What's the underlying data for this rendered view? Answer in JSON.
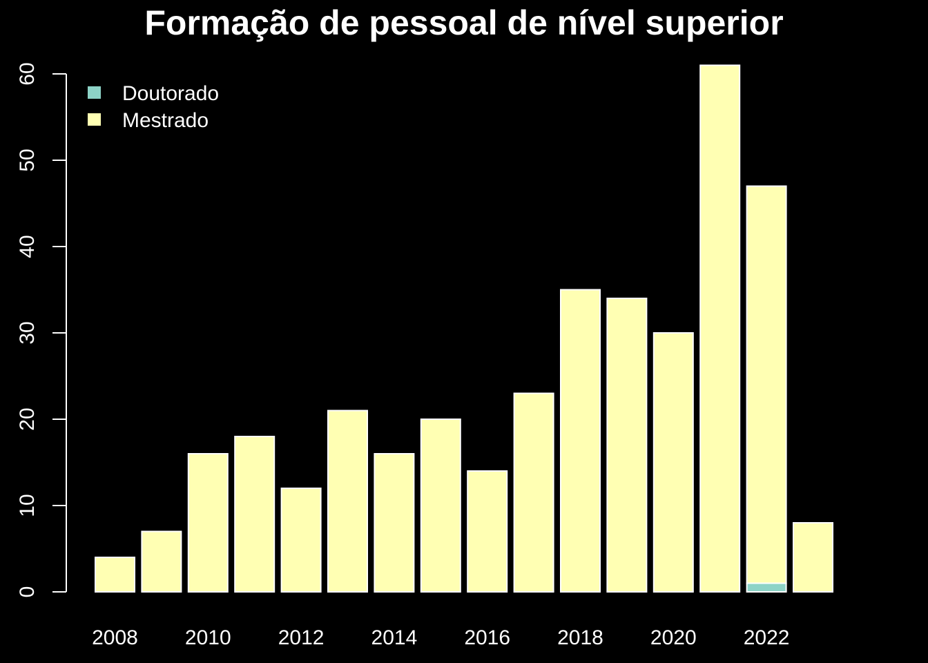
{
  "chart_data": {
    "type": "bar",
    "stacked": true,
    "title": "Formação de pessoal de nível superior",
    "xlabel": "",
    "ylabel": "",
    "categories": [
      "2008",
      "2009",
      "2010",
      "2011",
      "2012",
      "2013",
      "2014",
      "2015",
      "2016",
      "2017",
      "2018",
      "2019",
      "2020",
      "2021",
      "2022",
      "2023"
    ],
    "x_tick_labels": [
      "2008",
      "2010",
      "2012",
      "2014",
      "2016",
      "2018",
      "2020",
      "2022"
    ],
    "y_ticks": [
      0,
      10,
      20,
      30,
      40,
      50,
      60
    ],
    "ylim": [
      0,
      61
    ],
    "grid": false,
    "legend_position": "top-left",
    "background": "#000000",
    "series": [
      {
        "name": "Doutorado",
        "color": "#8dd3c7",
        "values": [
          0,
          0,
          0,
          0,
          0,
          0,
          0,
          0,
          0,
          0,
          0,
          0,
          0,
          0,
          1,
          0
        ]
      },
      {
        "name": "Mestrado",
        "color": "#ffffb3",
        "values": [
          4,
          7,
          16,
          18,
          12,
          21,
          16,
          20,
          14,
          23,
          35,
          34,
          30,
          61,
          46,
          8
        ]
      }
    ]
  }
}
